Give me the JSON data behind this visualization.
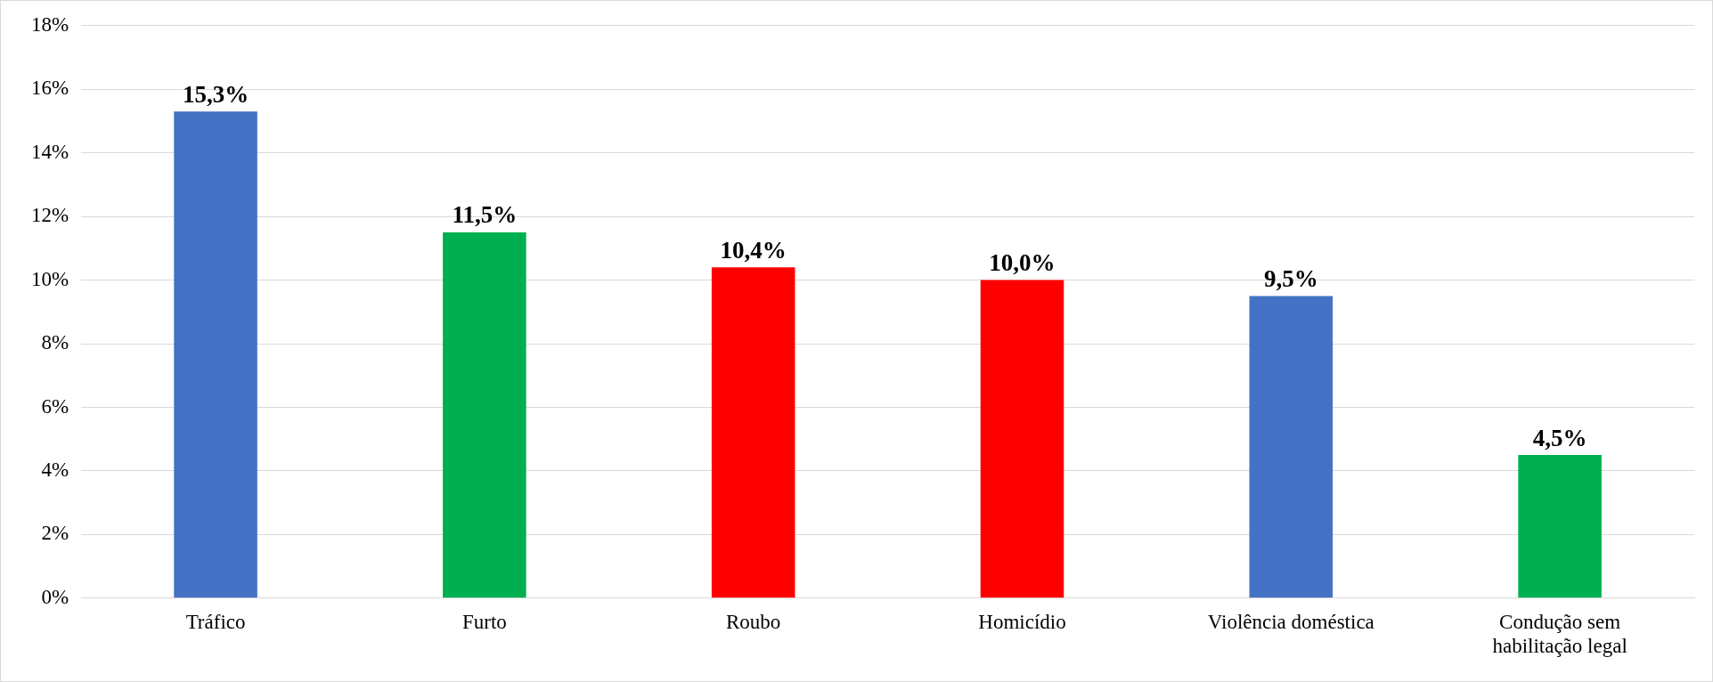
{
  "chart_data": {
    "type": "bar",
    "categories": [
      "Tráfico",
      "Furto",
      "Roubo",
      "Homicídio",
      "Violência doméstica",
      "Condução sem habilitação legal"
    ],
    "values": [
      15.3,
      11.5,
      10.4,
      10.0,
      9.5,
      4.5
    ],
    "colors": [
      "#4472c4",
      "#00b050",
      "#ff0000",
      "#ff0000",
      "#4472c4",
      "#00b050"
    ],
    "value_labels": [
      "15,3%",
      "11,5%",
      "10,4%",
      "10,0%",
      "9,5%",
      "4,5%"
    ],
    "ylim": [
      0,
      18
    ],
    "yticks": [
      {
        "value": 0,
        "label": "0%"
      },
      {
        "value": 2,
        "label": "2%"
      },
      {
        "value": 4,
        "label": "4%"
      },
      {
        "value": 6,
        "label": "6%"
      },
      {
        "value": 8,
        "label": "8%"
      },
      {
        "value": 10,
        "label": "10%"
      },
      {
        "value": 12,
        "label": "12%"
      },
      {
        "value": 14,
        "label": "14%"
      },
      {
        "value": 16,
        "label": "16%"
      },
      {
        "value": 18,
        "label": "18%"
      }
    ],
    "grid": "y",
    "legend": false
  }
}
